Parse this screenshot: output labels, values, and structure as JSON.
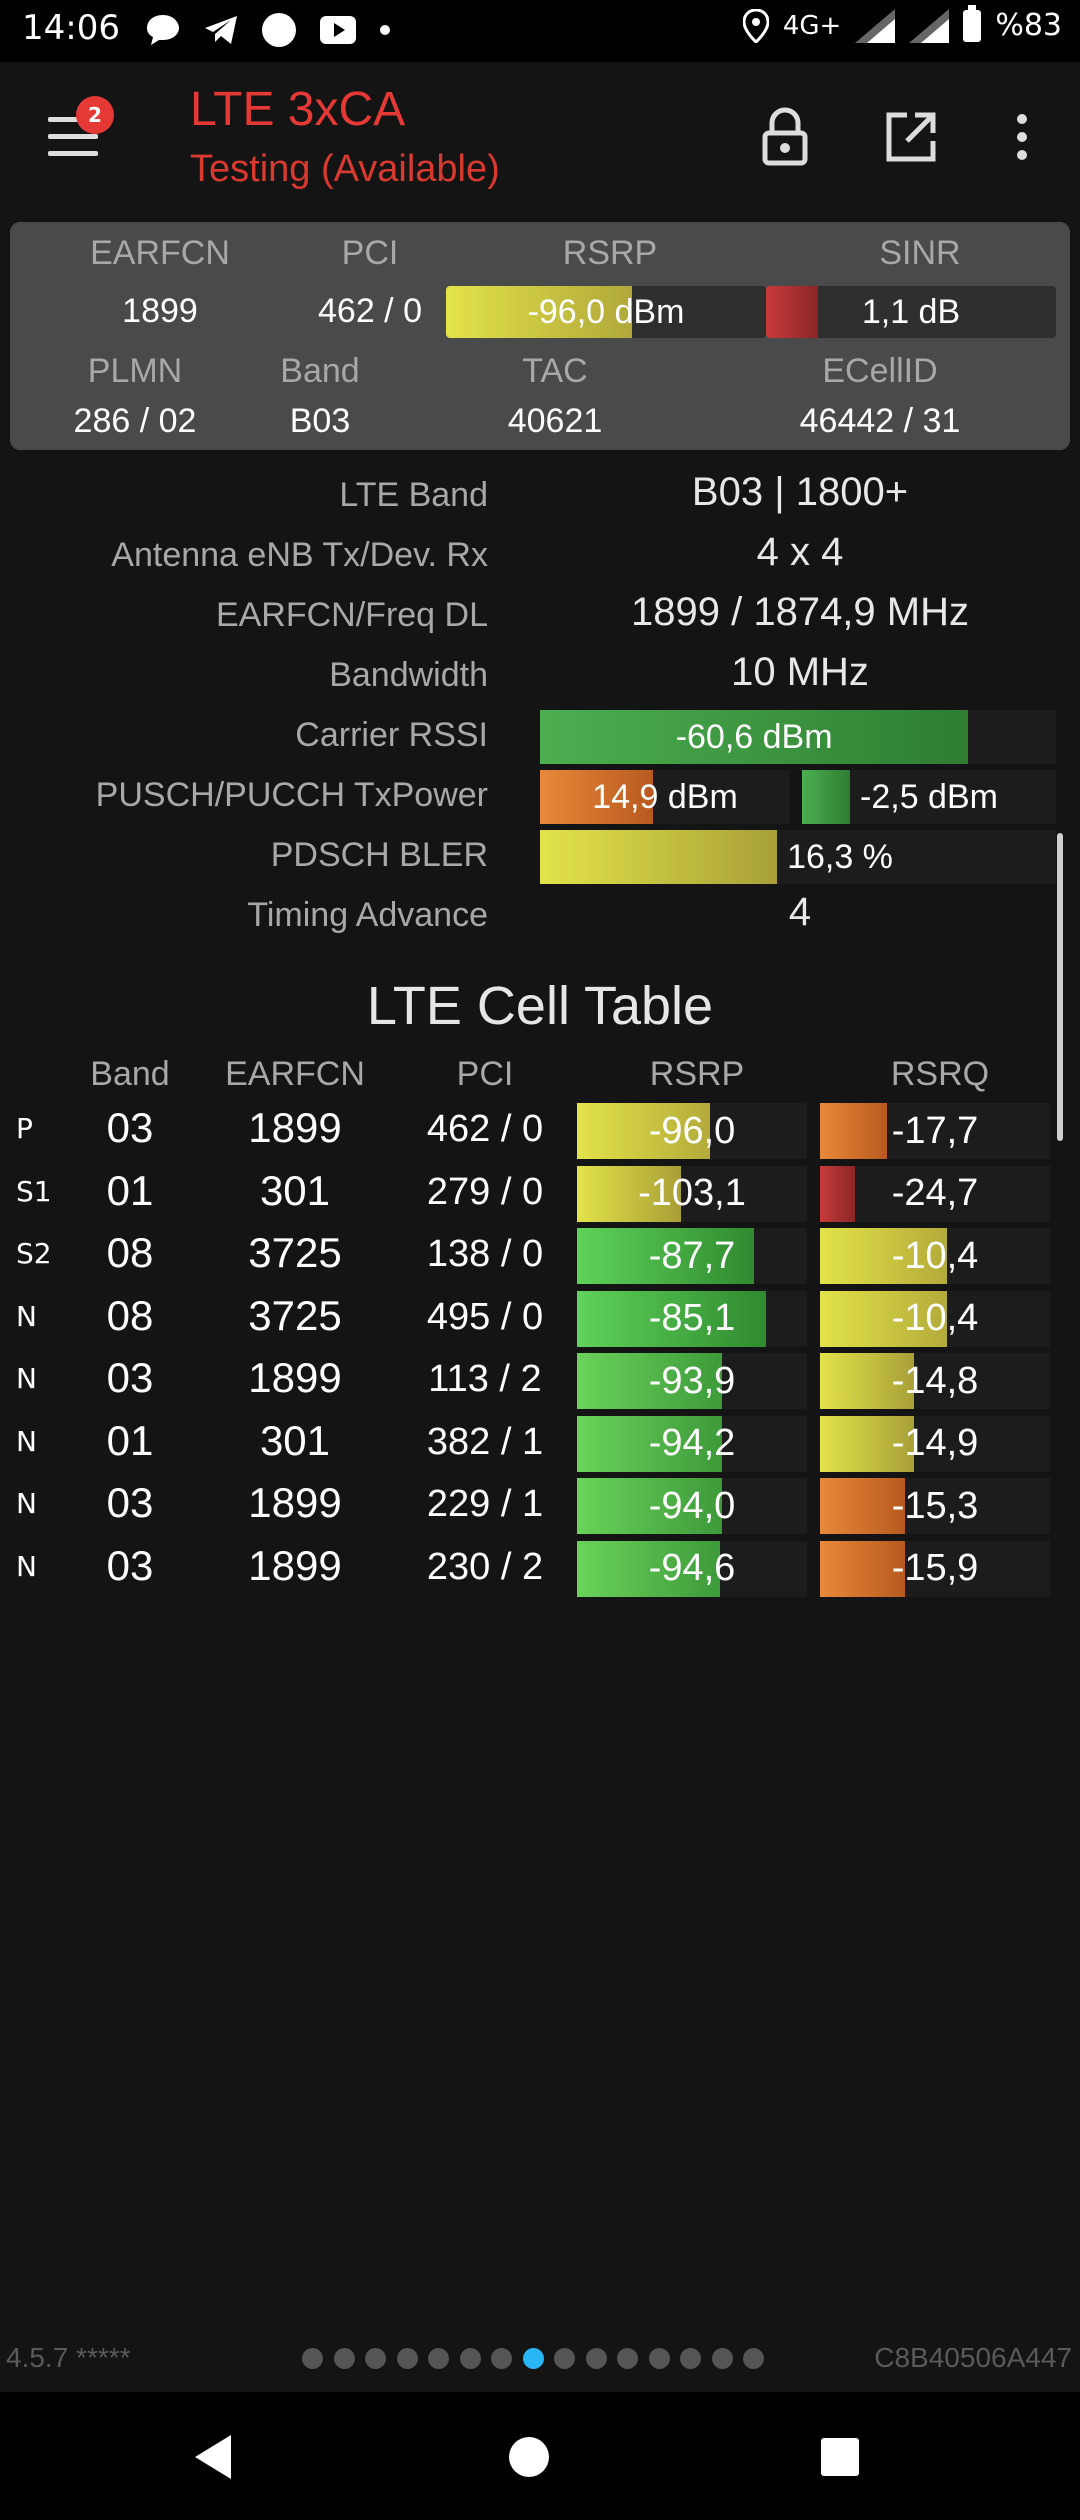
{
  "status_bar": {
    "time": "14:06",
    "network": "4G+",
    "battery": "%83",
    "icons": [
      "chat-icon",
      "telegram-icon",
      "circle-icon",
      "youtube-icon",
      "dot-icon",
      "location-icon",
      "signal-icon",
      "signal-icon",
      "battery-icon"
    ]
  },
  "app_bar": {
    "title": "LTE 3xCA",
    "subtitle": "Testing (Available)",
    "menu_badge": "2",
    "accent": "#e53935"
  },
  "summary": {
    "headers": {
      "earfcn": "EARFCN",
      "pci": "PCI",
      "rsrp": "RSRP",
      "sinr": "SINR",
      "plmn": "PLMN",
      "band": "Band",
      "tac": "TAC",
      "ecellid": "ECellID"
    },
    "values": {
      "earfcn": "1899",
      "pci": "462 / 0",
      "rsrp": "-96,0 dBm",
      "sinr": "1,1 dB",
      "plmn": "286 / 02",
      "band": "B03",
      "tac": "40621",
      "ecellid": "46442 / 31"
    },
    "rsrp_level": 0.58,
    "sinr_level": 0.18
  },
  "info": {
    "lte_band": {
      "label": "LTE Band",
      "value": "B03 | 1800+"
    },
    "antenna": {
      "label": "Antenna eNB Tx/Dev. Rx",
      "value": "4 x 4"
    },
    "earfcn_freq": {
      "label": "EARFCN/Freq DL",
      "value": "1899 / 1874,9 MHz"
    },
    "bandwidth": {
      "label": "Bandwidth",
      "value": "10 MHz"
    },
    "carrier_rssi": {
      "label": "Carrier RSSI",
      "value": "-60,6 dBm",
      "level": 0.83
    },
    "tx_power": {
      "label": "PUSCH/PUCCH TxPower",
      "pusch": "14,9 dBm",
      "pusch_level": 0.45,
      "pucch": "-2,5 dBm",
      "pucch_level": 0.19
    },
    "pdsch_bler": {
      "label": "PDSCH BLER",
      "value": "16,3 %",
      "level": 0.46
    },
    "timing_advance": {
      "label": "Timing Advance",
      "value": "4"
    }
  },
  "cell_table": {
    "title": "LTE Cell Table",
    "headers": {
      "band": "Band",
      "earfcn": "EARFCN",
      "pci": "PCI",
      "rsrp": "RSRP",
      "rsrq": "RSRQ"
    },
    "rows": [
      {
        "type": "P",
        "band": "03",
        "earfcn": "1899",
        "pci": "462 / 0",
        "rsrp": "-96,0",
        "rsrp_level": 0.58,
        "rsrq": "-17,7",
        "rsrq_level": 0.29
      },
      {
        "type": "S1",
        "band": "01",
        "earfcn": "301",
        "pci": "279 / 0",
        "rsrp": "-103,1",
        "rsrp_level": 0.45,
        "rsrq": "-24,7",
        "rsrq_level": 0.15
      },
      {
        "type": "S2",
        "band": "08",
        "earfcn": "3725",
        "pci": "138 / 0",
        "rsrp": "-87,7",
        "rsrp_level": 0.77,
        "rsrq": "-10,4",
        "rsrq_level": 0.55
      },
      {
        "type": "N",
        "band": "08",
        "earfcn": "3725",
        "pci": "495 / 0",
        "rsrp": "-85,1",
        "rsrp_level": 0.82,
        "rsrq": "-10,4",
        "rsrq_level": 0.55
      },
      {
        "type": "N",
        "band": "03",
        "earfcn": "1899",
        "pci": "113 / 2",
        "rsrp": "-93,9",
        "rsrp_level": 0.63,
        "rsrq": "-14,8",
        "rsrq_level": 0.41
      },
      {
        "type": "N",
        "band": "01",
        "earfcn": "301",
        "pci": "382 / 1",
        "rsrp": "-94,2",
        "rsrp_level": 0.63,
        "rsrq": "-14,9",
        "rsrq_level": 0.41
      },
      {
        "type": "N",
        "band": "03",
        "earfcn": "1899",
        "pci": "229 / 1",
        "rsrp": "-94,0",
        "rsrp_level": 0.63,
        "rsrq": "-15,3",
        "rsrq_level": 0.37
      },
      {
        "type": "N",
        "band": "03",
        "earfcn": "1899",
        "pci": "230 / 2",
        "rsrp": "-94,6",
        "rsrp_level": 0.62,
        "rsrq": "-15,9",
        "rsrq_level": 0.37
      }
    ]
  },
  "footer": {
    "version": "4.5.7 *****",
    "device_id": "C8B40506A447",
    "page_count": 15,
    "active_page": 7
  }
}
